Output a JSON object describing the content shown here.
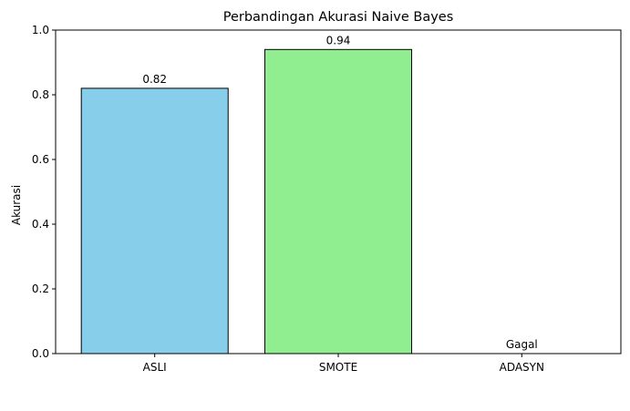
{
  "chart_data": {
    "type": "bar",
    "title": "Perbandingan Akurasi Naive Bayes",
    "xlabel": "",
    "ylabel": "Akurasi",
    "categories": [
      "ASLI",
      "SMOTE",
      "ADASYN"
    ],
    "values": [
      0.82,
      0.94,
      0.0
    ],
    "data_labels": [
      "0.82",
      "0.94",
      "Gagal"
    ],
    "bar_colors": [
      "#87ceeb",
      "#90ee90",
      "#ffffff"
    ],
    "edge_color": "#000000",
    "ylim": [
      0,
      1.0
    ],
    "yticks": [
      0.0,
      0.2,
      0.4,
      0.6,
      0.8,
      1.0
    ],
    "ytick_labels": [
      "0.0",
      "0.2",
      "0.4",
      "0.6",
      "0.8",
      "1.0"
    ],
    "grid": false,
    "legend": "none"
  }
}
